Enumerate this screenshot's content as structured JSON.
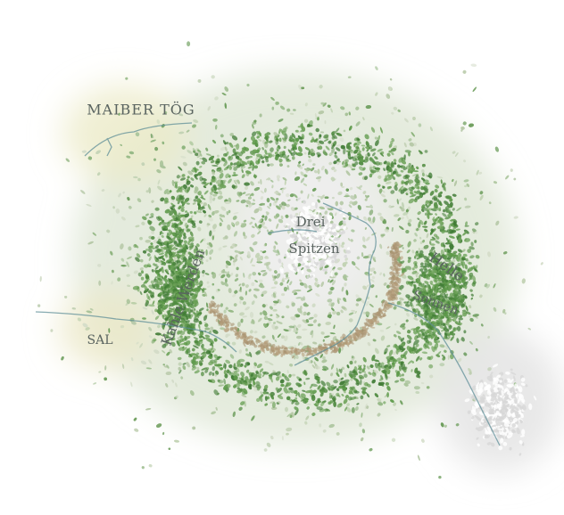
{
  "map": {
    "labels": [
      {
        "lines": [
          "MAIBER TÖG"
        ]
      },
      {
        "lines": [
          "Drei",
          "Spitzen"
        ]
      },
      {
        "lines": [
          "Kahle Werden"
        ]
      },
      {
        "lines": [
          "Helle",
          "Sonnen"
        ]
      },
      {
        "lines": [
          "SAL"
        ]
      }
    ]
  }
}
